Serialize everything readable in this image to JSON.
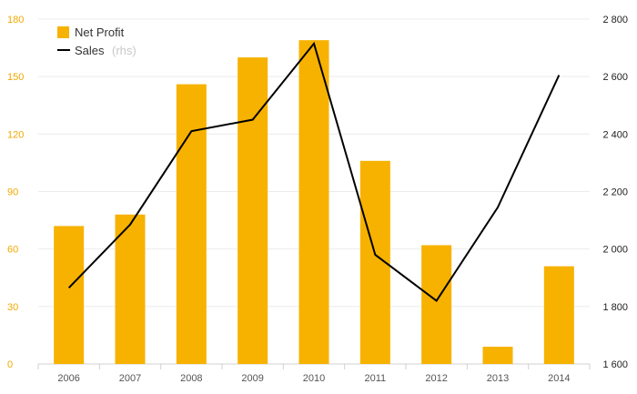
{
  "chart_data": {
    "type": "bar",
    "categories": [
      "2006",
      "2007",
      "2008",
      "2009",
      "2010",
      "2011",
      "2012",
      "2013",
      "2014"
    ],
    "series": [
      {
        "name": "Net Profit",
        "type": "bar",
        "axis": "left",
        "color": "#f7b200",
        "values": [
          72,
          78,
          146,
          160,
          169,
          106,
          62,
          9,
          51
        ]
      },
      {
        "name": "Sales",
        "note": "(rhs)",
        "type": "line",
        "axis": "right",
        "color": "#000000",
        "values": [
          1865,
          2085,
          2410,
          2450,
          2715,
          1980,
          1820,
          2145,
          2605
        ]
      }
    ],
    "y_left": {
      "lim": [
        0,
        180
      ],
      "ticks": [
        "0",
        "30",
        "60",
        "90",
        "120",
        "150",
        "180"
      ],
      "color": "#f2a900"
    },
    "y_right": {
      "lim": [
        1600,
        2800
      ],
      "ticks": [
        "1 600",
        "1 800",
        "2 000",
        "2 200",
        "2 400",
        "2 600",
        "2 800"
      ]
    },
    "grid": true,
    "legend_position": "top-left",
    "title": "",
    "xlabel": "",
    "ylabel": ""
  }
}
